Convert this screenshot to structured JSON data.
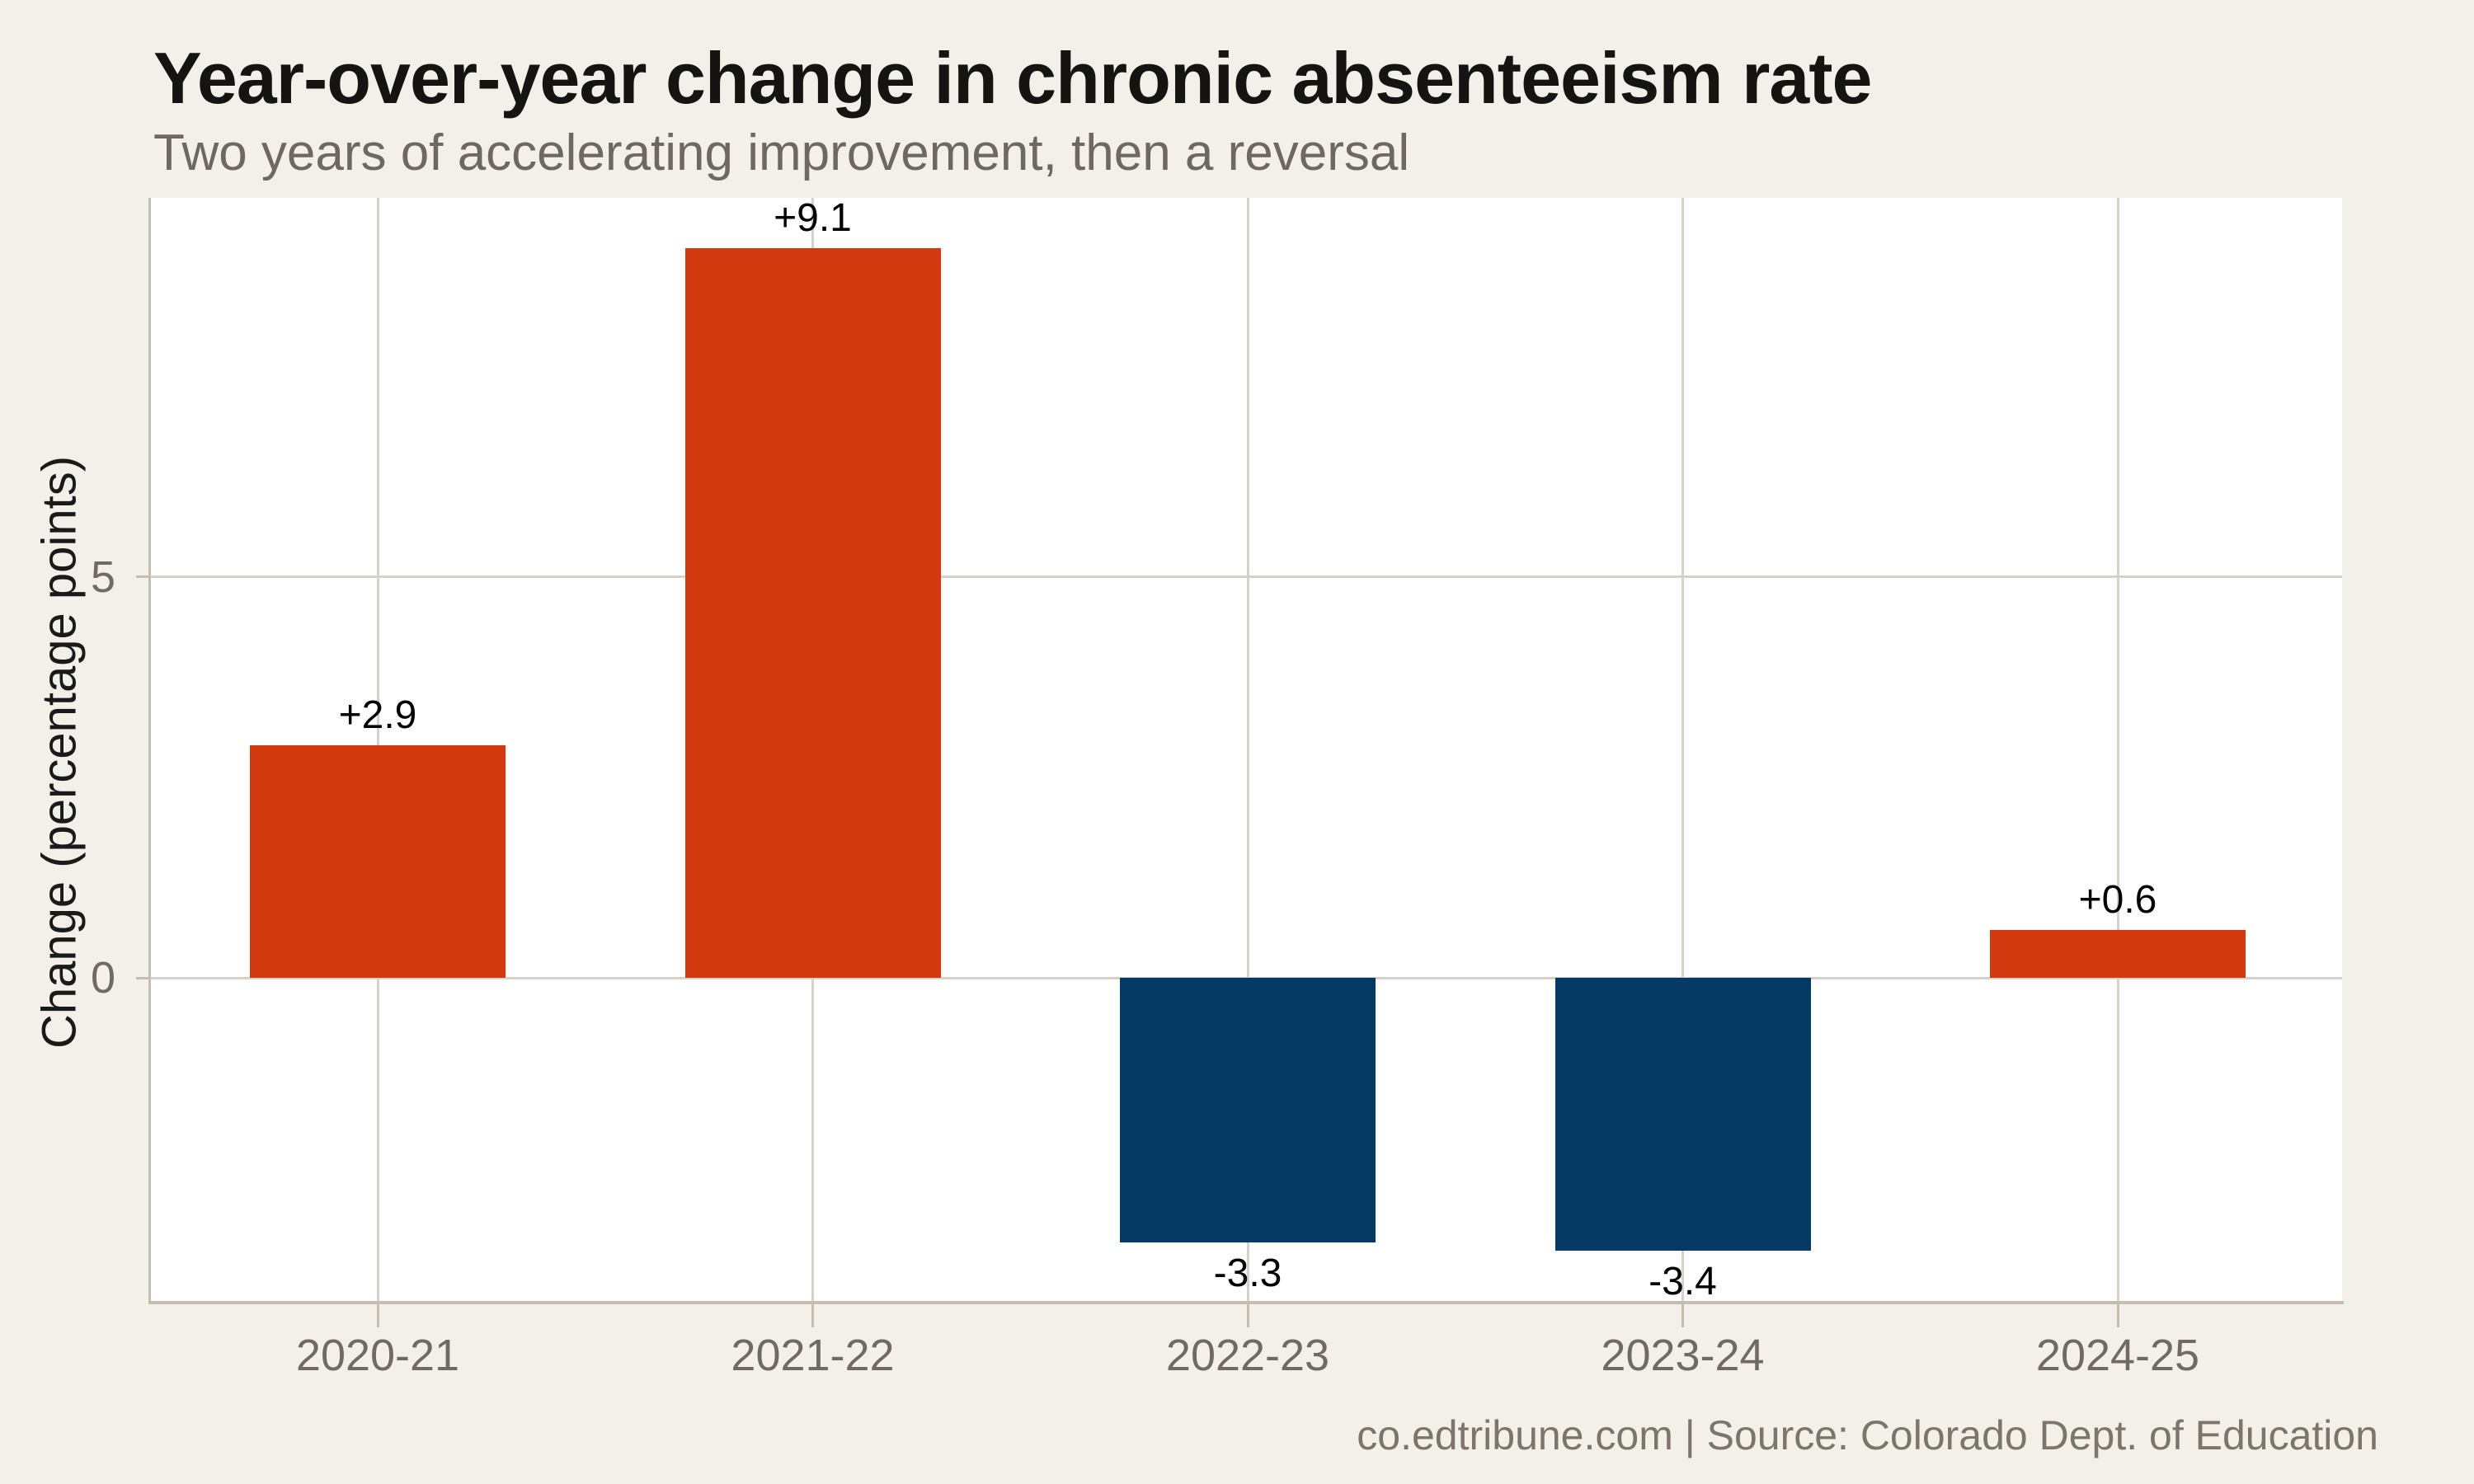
{
  "chart_data": {
    "type": "bar",
    "title": "Year-over-year change in chronic absenteeism rate",
    "subtitle": "Two years of accelerating improvement, then a reversal",
    "source_note": "co.edtribune.com | Source: Colorado Dept. of Education",
    "ylabel": "Change (percentage points)",
    "xlabel": "",
    "categories": [
      "2020-21",
      "2021-22",
      "2022-23",
      "2023-24",
      "2024-25"
    ],
    "values": [
      2.9,
      9.1,
      -3.3,
      -3.4,
      0.6
    ],
    "value_labels": [
      "+2.9",
      "+9.1",
      "-3.3",
      "-3.4",
      "+0.6"
    ],
    "yticks": [
      {
        "value": 0,
        "label": "0"
      },
      {
        "value": 5,
        "label": "5"
      }
    ],
    "ylim": [
      -4.025,
      9.725
    ],
    "grid": {
      "vertical_at_categories": true,
      "horizontal_at_yticks": true
    },
    "legend": "none",
    "colors": {
      "positive_bar": "#d2390f",
      "negative_bar": "#053a64"
    }
  },
  "style": {
    "page_background": "#f3efe9",
    "plot_background": "#ffffff",
    "gridline_color": "#d7d2c9",
    "axis_line_color": "#c4bdb2",
    "axis_text_color": "#6f6a63",
    "title_color": "#161412",
    "subtitle_color": "#6d6862",
    "value_label_color": "#000000",
    "footer_color": "#7b756c"
  }
}
